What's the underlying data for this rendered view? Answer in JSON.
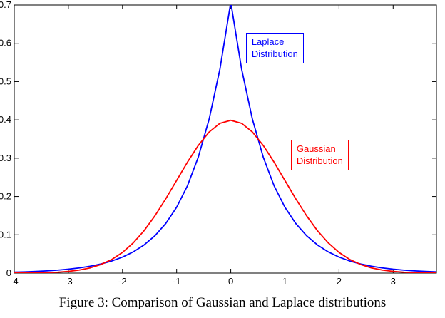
{
  "caption": "Figure 3: Comparison of Gaussian and Laplace distributions",
  "chart_data": {
    "type": "line",
    "title": "",
    "xlabel": "",
    "ylabel": "",
    "grid": false,
    "legend_position": "none",
    "xlim": [
      -4,
      3.8
    ],
    "ylim": [
      0,
      0.7
    ],
    "xticks": [
      -4,
      -3,
      -2,
      -1,
      0,
      1,
      2,
      3
    ],
    "yticks": [
      0,
      0.1,
      0.2,
      0.3,
      0.4,
      0.5,
      0.6,
      0.7
    ],
    "x": [
      -4,
      -3.8,
      -3.6,
      -3.4,
      -3.2,
      -3,
      -2.8,
      -2.6,
      -2.4,
      -2.2,
      -2,
      -1.8,
      -1.6,
      -1.4,
      -1.2,
      -1,
      -0.8,
      -0.6,
      -0.4,
      -0.2,
      0,
      0.2,
      0.4,
      0.6,
      0.8,
      1,
      1.2,
      1.4,
      1.6,
      1.8,
      2,
      2.2,
      2.4,
      2.6,
      2.8,
      3,
      3.2,
      3.4,
      3.6,
      3.8
    ],
    "series": [
      {
        "name": "Laplace",
        "color": "#0000ff",
        "values": [
          0.00247,
          0.00328,
          0.00435,
          0.00577,
          0.00766,
          0.01016,
          0.01349,
          0.0179,
          0.02375,
          0.03151,
          0.0418,
          0.05546,
          0.0736,
          0.09765,
          0.12957,
          0.17192,
          0.22811,
          0.30268,
          0.40163,
          0.53291,
          0.70711,
          0.53291,
          0.40163,
          0.30268,
          0.22811,
          0.17192,
          0.12957,
          0.09765,
          0.0736,
          0.05546,
          0.0418,
          0.03151,
          0.02375,
          0.0179,
          0.01349,
          0.01016,
          0.00766,
          0.00577,
          0.00435,
          0.00328
        ]
      },
      {
        "name": "Gaussian",
        "color": "#ff0000",
        "values": [
          0.00013,
          0.00029,
          0.00061,
          0.00123,
          0.00238,
          0.00443,
          0.00792,
          0.01358,
          0.02239,
          0.03547,
          0.05399,
          0.07895,
          0.11092,
          0.14973,
          0.19419,
          0.24197,
          0.28969,
          0.33322,
          0.36827,
          0.39104,
          0.39894,
          0.39104,
          0.36827,
          0.33322,
          0.28969,
          0.24197,
          0.19419,
          0.14973,
          0.11092,
          0.07895,
          0.05399,
          0.03547,
          0.02239,
          0.01358,
          0.00792,
          0.00443,
          0.00238,
          0.00123,
          0.00061,
          0.00029
        ]
      }
    ],
    "annotations": [
      {
        "text_lines": [
          "Laplace",
          "Distribution"
        ],
        "color": "#0000ff",
        "x": 0.28,
        "y": 0.627
      },
      {
        "text_lines": [
          "Gaussian",
          "Distribution"
        ],
        "color": "#ff0000",
        "x": 1.11,
        "y": 0.348
      }
    ]
  }
}
